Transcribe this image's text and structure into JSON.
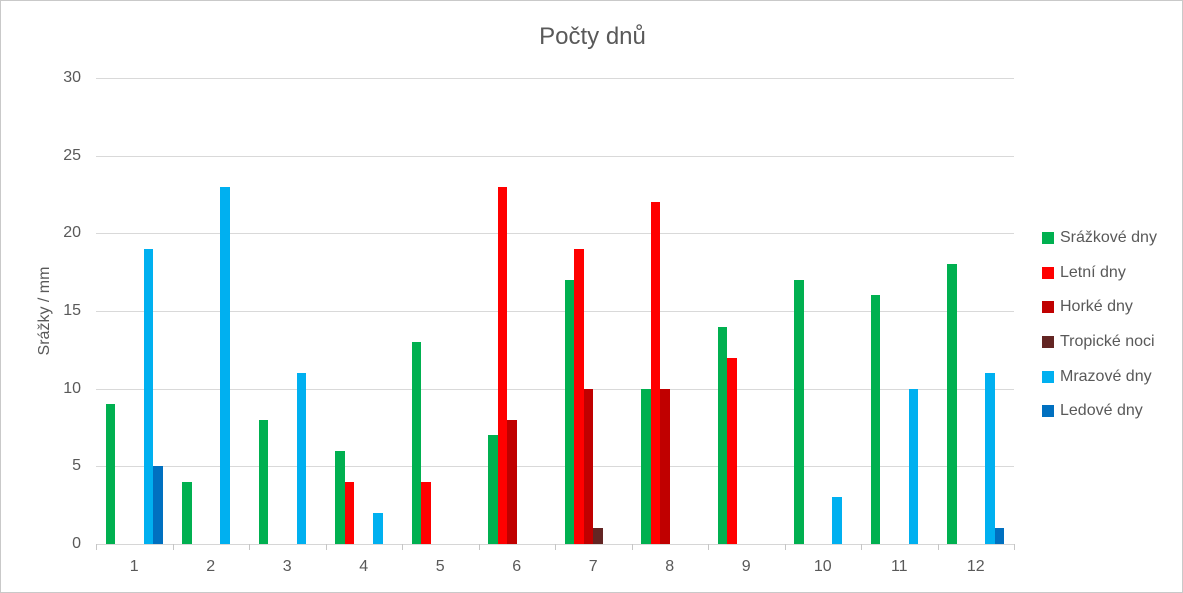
{
  "chart_data": {
    "type": "bar",
    "title": "Počty dnů",
    "ylabel": "Srážky / mm",
    "xlabel": "",
    "categories": [
      "1",
      "2",
      "3",
      "4",
      "5",
      "6",
      "7",
      "8",
      "9",
      "10",
      "11",
      "12"
    ],
    "series": [
      {
        "name": "Srážkové dny",
        "color": "#00B050",
        "values": [
          9,
          4,
          8,
          6,
          13,
          7,
          17,
          10,
          14,
          17,
          16,
          18
        ]
      },
      {
        "name": "Letní dny",
        "color": "#FF0000",
        "values": [
          0,
          0,
          0,
          4,
          4,
          23,
          19,
          22,
          12,
          0,
          0,
          0
        ]
      },
      {
        "name": "Horké dny",
        "color": "#C00000",
        "values": [
          0,
          0,
          0,
          0,
          0,
          8,
          10,
          10,
          0,
          0,
          0,
          0
        ]
      },
      {
        "name": "Tropické noci",
        "color": "#632523",
        "values": [
          0,
          0,
          0,
          0,
          0,
          0,
          1,
          0,
          0,
          0,
          0,
          0
        ]
      },
      {
        "name": "Mrazové dny",
        "color": "#00B0F0",
        "values": [
          19,
          23,
          11,
          2,
          0,
          0,
          0,
          0,
          0,
          3,
          10,
          11
        ]
      },
      {
        "name": "Ledové dny",
        "color": "#0070C0",
        "values": [
          5,
          0,
          0,
          0,
          0,
          0,
          0,
          0,
          0,
          0,
          0,
          1
        ]
      }
    ],
    "ylim": [
      0,
      30
    ],
    "yticks": [
      0,
      5,
      10,
      15,
      20,
      25,
      30
    ],
    "grid": true,
    "legend_position": "right",
    "gridline_color": "#D9D9D9",
    "text_color": "#595959"
  }
}
